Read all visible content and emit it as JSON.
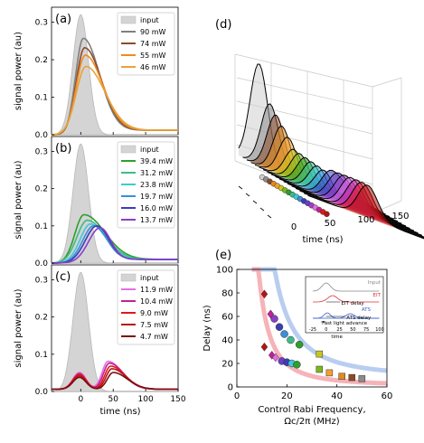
{
  "chart_data": [
    {
      "panel": "(a)",
      "type": "line",
      "xlabel": "",
      "ylabel": "signal power (au)",
      "xlim": [
        -45,
        150
      ],
      "ylim": [
        0,
        0.34
      ],
      "xticks": [
        0,
        50,
        100,
        150
      ],
      "xticklabels": [
        "",
        "",
        "",
        ""
      ],
      "yticks": [
        0.0,
        0.1,
        0.2,
        0.3
      ],
      "yticklabels": [
        "0.0",
        "0.1",
        "0.2",
        "0.3"
      ],
      "legend": "top-right",
      "input": {
        "name": "input",
        "color": "#d4d4d4",
        "center": 0,
        "peak": 0.32,
        "sigma": 12
      },
      "series": [
        {
          "name": "90 mW",
          "color": "#7f7f7f",
          "peak": 0.245,
          "center": 4,
          "rise": 12,
          "fall": 25,
          "tail": 0.012
        },
        {
          "name": "74 mW",
          "color": "#8c4a2a",
          "peak": 0.22,
          "center": 6,
          "rise": 13,
          "fall": 26,
          "tail": 0.012
        },
        {
          "name": "55 mW",
          "color": "#f08a1c",
          "peak": 0.2,
          "center": 7,
          "rise": 14,
          "fall": 27,
          "tail": 0.012
        },
        {
          "name": "46 mW",
          "color": "#e8a33b",
          "peak": 0.17,
          "center": 8,
          "rise": 15,
          "fall": 29,
          "tail": 0.012
        }
      ]
    },
    {
      "panel": "(b)",
      "type": "line",
      "xlabel": "",
      "ylabel": "signal power (au)",
      "xlim": [
        -45,
        150
      ],
      "ylim": [
        0,
        0.34
      ],
      "xticks": [
        0,
        50,
        100,
        150
      ],
      "xticklabels": [
        "",
        "",
        "",
        ""
      ],
      "yticks": [
        0.0,
        0.1,
        0.2,
        0.3
      ],
      "yticklabels": [
        "0.0",
        "0.1",
        "0.2",
        "0.3"
      ],
      "legend": "top-right",
      "input": {
        "name": "input",
        "color": "#d4d4d4",
        "center": 0,
        "peak": 0.32,
        "sigma": 12
      },
      "series": [
        {
          "name": "39.4 mW",
          "color": "#2ca02c",
          "peak": 0.12,
          "center": 5,
          "rise": 14,
          "fall": 32,
          "tail": 0.01
        },
        {
          "name": "31.2 mW",
          "color": "#3dbb8a",
          "peak": 0.105,
          "center": 10,
          "rise": 16,
          "fall": 28,
          "tail": 0.01
        },
        {
          "name": "23.8 mW",
          "color": "#3ec8d8",
          "peak": 0.095,
          "center": 15,
          "rise": 16,
          "fall": 24,
          "tail": 0.01
        },
        {
          "name": "19.7 mW",
          "color": "#3a8fd8",
          "peak": 0.09,
          "center": 20,
          "rise": 17,
          "fall": 20,
          "tail": 0.01
        },
        {
          "name": "16.0 mW",
          "color": "#3c3cb8",
          "peak": 0.09,
          "center": 25,
          "rise": 18,
          "fall": 18,
          "tail": 0.01
        },
        {
          "name": "13.7 mW",
          "color": "#8a3ec8",
          "peak": 0.085,
          "center": 30,
          "rise": 18,
          "fall": 16,
          "tail": 0.01
        }
      ]
    },
    {
      "panel": "(c)",
      "type": "line",
      "xlabel": "time (ns)",
      "ylabel": "signal power (au)",
      "xlim": [
        -45,
        150
      ],
      "ylim": [
        0,
        0.34
      ],
      "xticks": [
        0,
        50,
        100,
        150
      ],
      "xticklabels": [
        "0",
        "50",
        "100",
        "150"
      ],
      "yticks": [
        0.0,
        0.1,
        0.2,
        0.3
      ],
      "yticklabels": [
        "0.0",
        "0.1",
        "0.2",
        "0.3"
      ],
      "legend": "top-right",
      "input": {
        "name": "input",
        "color": "#d4d4d4",
        "center": 0,
        "peak": 0.32,
        "sigma": 12
      },
      "series": [
        {
          "name": "11.9 mW",
          "color": "#e36fe0",
          "p1": 0.045,
          "c1": -2,
          "p2": 0.075,
          "c2": 42
        },
        {
          "name": "10.4 mW",
          "color": "#c21f9a",
          "p1": 0.042,
          "c1": -2,
          "p2": 0.07,
          "c2": 44
        },
        {
          "name": "9.0 mW",
          "color": "#e01818",
          "p1": 0.04,
          "c1": -2,
          "p2": 0.062,
          "c2": 46
        },
        {
          "name": "7.5 mW",
          "color": "#b41414",
          "p1": 0.036,
          "c1": -2,
          "p2": 0.055,
          "c2": 48
        },
        {
          "name": "4.7 mW",
          "color": "#7a0e0e",
          "p1": 0.032,
          "c1": -2,
          "p2": 0.045,
          "c2": 50
        }
      ]
    },
    {
      "panel": "(d)",
      "type": "line",
      "xlabel": "time (ns)",
      "xticklabels": [
        "0",
        "50",
        "100",
        "150"
      ],
      "slices": [
        "#cfcfcf",
        "#8c8c8c",
        "#8c4a2a",
        "#e08a1c",
        "#f0a030",
        "#c8c81c",
        "#7ab81c",
        "#2ca02c",
        "#3dbb8a",
        "#3ec8d8",
        "#3a8fd8",
        "#3c3cb8",
        "#6a3ec8",
        "#a03ec8",
        "#e36fe0",
        "#c21f9a",
        "#e01818",
        "#b41414"
      ]
    },
    {
      "panel": "(e)",
      "type": "scatter",
      "xlabel": "Control Rabi Frequency,",
      "xlabel2": "Ωc/2π (MHz)",
      "ylabel": "Delay (ns)",
      "xlim": [
        0,
        60
      ],
      "ylim": [
        0,
        100
      ],
      "xticks": [
        0,
        20,
        40,
        60
      ],
      "yticks": [
        0,
        20,
        40,
        60,
        80,
        100
      ],
      "curves": [
        {
          "name": "EIT",
          "color": "#f4a0a6"
        },
        {
          "name": "ATS",
          "color": "#a8c0ec"
        }
      ],
      "points_upper": [
        {
          "x": 11,
          "y": 79,
          "color": "#b41414",
          "shape": "diamond"
        },
        {
          "x": 13.5,
          "y": 62,
          "color": "#c21f9a",
          "shape": "diamond"
        },
        {
          "x": 15,
          "y": 58,
          "color": "#8a3ec8",
          "shape": "circle"
        },
        {
          "x": 17,
          "y": 51,
          "color": "#3c3cb8",
          "shape": "circle"
        },
        {
          "x": 19,
          "y": 45,
          "color": "#3a8fd8",
          "shape": "circle"
        },
        {
          "x": 21.5,
          "y": 40,
          "color": "#3dbb8a",
          "shape": "circle"
        },
        {
          "x": 25,
          "y": 36,
          "color": "#2ca02c",
          "shape": "circle"
        },
        {
          "x": 33,
          "y": 28,
          "color": "#c8c81c",
          "shape": "square"
        }
      ],
      "points_lower": [
        {
          "x": 11,
          "y": 34,
          "color": "#b41414",
          "shape": "diamond"
        },
        {
          "x": 14,
          "y": 27,
          "color": "#c21f9a",
          "shape": "diamond"
        },
        {
          "x": 15.5,
          "y": 25,
          "color": "#e36fe0",
          "shape": "diamond"
        },
        {
          "x": 18,
          "y": 22,
          "color": "#6a3ec8",
          "shape": "circle"
        },
        {
          "x": 20,
          "y": 21,
          "color": "#3c3cb8",
          "shape": "circle"
        },
        {
          "x": 22,
          "y": 20,
          "color": "#3ec8d8",
          "shape": "circle"
        },
        {
          "x": 24,
          "y": 19,
          "color": "#2ca02c",
          "shape": "circle"
        },
        {
          "x": 33,
          "y": 15,
          "color": "#7ab81c",
          "shape": "square"
        },
        {
          "x": 37,
          "y": 12,
          "color": "#f0a030",
          "shape": "square"
        },
        {
          "x": 42,
          "y": 9,
          "color": "#e08a1c",
          "shape": "square"
        },
        {
          "x": 46,
          "y": 8,
          "color": "#8c4a2a",
          "shape": "square"
        },
        {
          "x": 50,
          "y": 7,
          "color": "#8c8c8c",
          "shape": "square"
        }
      ],
      "inset": {
        "xticklabels": [
          "-25",
          "0",
          "25",
          "50",
          "75",
          "100"
        ],
        "xlabel": "time",
        "labels": {
          "input": "Input",
          "eit": "EIT",
          "eit_delay": "EIT delay",
          "ats": "ATS",
          "ats_delay": "ATS delay",
          "fast": "Fast light advance"
        }
      }
    }
  ]
}
